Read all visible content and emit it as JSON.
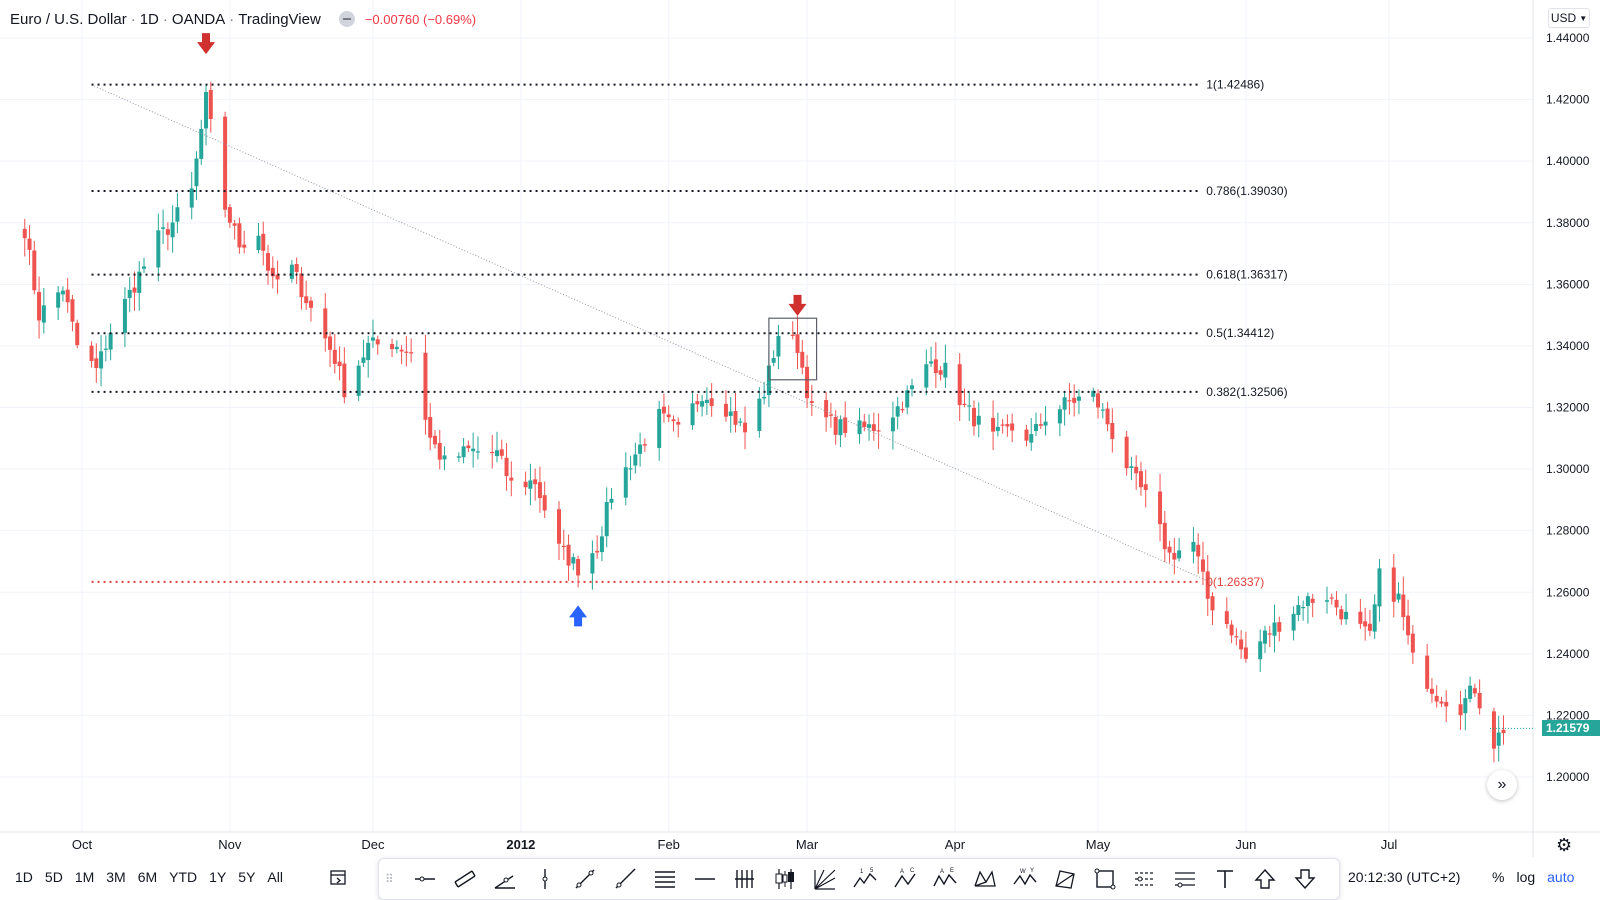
{
  "header": {
    "symbol": "Euro / U.S. Dollar",
    "interval": "1D",
    "source": "OANDA",
    "platform": "TradingView",
    "change": "−0.00760 (−0.69%)"
  },
  "currency_selector": "USD",
  "price_label": "1.21579",
  "timezone_clock": "20:12:30 (UTC+2)",
  "ranges": [
    "1D",
    "5D",
    "1M",
    "3M",
    "6M",
    "YTD",
    "1Y",
    "5Y",
    "All"
  ],
  "scale_options": {
    "percent": "%",
    "log": "log",
    "auto": "auto"
  },
  "drawing_tools": [
    {
      "icon": "horizontal-ray-icon"
    },
    {
      "icon": "parallel-channel-icon"
    },
    {
      "icon": "trend-angle-icon"
    },
    {
      "icon": "vertical-line-icon"
    },
    {
      "icon": "trend-line-icon"
    },
    {
      "icon": "ray-icon"
    },
    {
      "icon": "fib-retracement-icon"
    },
    {
      "icon": "horizontal-line-icon"
    },
    {
      "icon": "pitchfork-icon"
    },
    {
      "icon": "candles-icon"
    },
    {
      "icon": "gann-fan-icon"
    },
    {
      "icon": "elliott-wave-icon"
    },
    {
      "icon": "abc-pattern-icon"
    },
    {
      "icon": "abcde-pattern-icon"
    },
    {
      "icon": "xabcd-pattern-icon"
    },
    {
      "icon": "wxy-pattern-icon"
    },
    {
      "icon": "polyline-icon"
    },
    {
      "icon": "rectangle-icon"
    },
    {
      "icon": "long-position-icon"
    },
    {
      "icon": "short-position-icon"
    },
    {
      "icon": "text-icon"
    },
    {
      "icon": "arrow-up-icon"
    },
    {
      "icon": "arrow-down-icon"
    }
  ],
  "drawing_tool_labels": {
    "elliott": "1 5",
    "abc": "A C",
    "abcde": "A E",
    "wxy": "W Y"
  },
  "colors": {
    "up": "#26a69a",
    "down": "#ef5350",
    "fib_zero": "#e0403c",
    "marker_down": "#d0302e",
    "marker_up": "#2962ff"
  },
  "chart_data": {
    "type": "candlestick",
    "y_axis": {
      "min": 1.19,
      "max": 1.44,
      "ticks": [
        1.44,
        1.42,
        1.4,
        1.38,
        1.36,
        1.34,
        1.32,
        1.3,
        1.28,
        1.26,
        1.24,
        1.22,
        1.2
      ],
      "tick_labels": [
        "1.44000",
        "1.42000",
        "1.40000",
        "1.38000",
        "1.36000",
        "1.34000",
        "1.32000",
        "1.30000",
        "1.28000",
        "1.26000",
        "1.24000",
        "1.22000",
        "1.20000"
      ]
    },
    "x_axis": {
      "start_date": "2011-09-18",
      "end_date": "2012-07-29",
      "ticks": [
        {
          "date": "2011-10-01",
          "label": "Oct",
          "bold": false
        },
        {
          "date": "2011-11-01",
          "label": "Nov",
          "bold": false
        },
        {
          "date": "2011-12-01",
          "label": "Dec",
          "bold": false
        },
        {
          "date": "2012-01-01",
          "label": "2012",
          "bold": true
        },
        {
          "date": "2012-02-01",
          "label": "Feb",
          "bold": false
        },
        {
          "date": "2012-03-01",
          "label": "Mar",
          "bold": false
        },
        {
          "date": "2012-04-01",
          "label": "Apr",
          "bold": false
        },
        {
          "date": "2012-05-01",
          "label": "May",
          "bold": false
        },
        {
          "date": "2012-06-01",
          "label": "Jun",
          "bold": false
        },
        {
          "date": "2012-07-01",
          "label": "Jul",
          "bold": false
        }
      ]
    },
    "grid": true,
    "fibonacci": {
      "start_date": "2011-10-03",
      "end_date": "2012-05-22",
      "high_date": "2011-10-27",
      "low_date": "2012-01-13",
      "levels": [
        {
          "ratio": 1,
          "price": 1.42486,
          "label": "1(1.42486)"
        },
        {
          "ratio": 0.786,
          "price": 1.3903,
          "label": "0.786(1.39030)"
        },
        {
          "ratio": 0.618,
          "price": 1.36317,
          "label": "0.618(1.36317)"
        },
        {
          "ratio": 0.5,
          "price": 1.34412,
          "label": "0.5(1.34412)"
        },
        {
          "ratio": 0.382,
          "price": 1.32506,
          "label": "0.382(1.32506)"
        },
        {
          "ratio": 0,
          "price": 1.26337,
          "label": "0(1.26337)"
        }
      ]
    },
    "trend_line": {
      "from": {
        "date": "2011-10-03",
        "price": 1.4248
      },
      "to": {
        "date": "2012-05-25",
        "price": 1.263
      }
    },
    "highlight_box": {
      "from_date": "2012-02-22",
      "to_date": "2012-03-03",
      "high": 1.349,
      "low": 1.329
    },
    "markers": [
      {
        "date": "2011-10-27",
        "price": 1.438,
        "direction": "down"
      },
      {
        "date": "2012-02-28",
        "price": 1.353,
        "direction": "down"
      },
      {
        "date": "2012-01-13",
        "price": 1.2525,
        "direction": "up"
      }
    ],
    "anchors": [
      [
        "2011-09-19",
        1.378
      ],
      [
        "2011-09-22",
        1.35
      ],
      [
        "2011-09-27",
        1.359
      ],
      [
        "2011-09-30",
        1.34
      ],
      [
        "2011-10-04",
        1.332
      ],
      [
        "2011-10-07",
        1.345
      ],
      [
        "2011-10-12",
        1.36
      ],
      [
        "2011-10-17",
        1.375
      ],
      [
        "2011-10-20",
        1.38
      ],
      [
        "2011-10-24",
        1.39
      ],
      [
        "2011-10-27",
        1.42
      ],
      [
        "2011-10-31",
        1.385
      ],
      [
        "2011-11-03",
        1.373
      ],
      [
        "2011-11-07",
        1.377
      ],
      [
        "2011-11-10",
        1.36
      ],
      [
        "2011-11-14",
        1.365
      ],
      [
        "2011-11-18",
        1.352
      ],
      [
        "2011-11-23",
        1.336
      ],
      [
        "2011-11-25",
        1.326
      ],
      [
        "2011-11-30",
        1.34
      ],
      [
        "2011-12-05",
        1.341
      ],
      [
        "2011-12-09",
        1.338
      ],
      [
        "2011-12-13",
        1.31
      ],
      [
        "2011-12-16",
        1.302
      ],
      [
        "2011-12-21",
        1.306
      ],
      [
        "2011-12-27",
        1.305
      ],
      [
        "2011-12-30",
        1.295
      ],
      [
        "2012-01-04",
        1.296
      ],
      [
        "2012-01-09",
        1.274
      ],
      [
        "2012-01-13",
        1.268
      ],
      [
        "2012-01-17",
        1.275
      ],
      [
        "2012-01-20",
        1.292
      ],
      [
        "2012-01-25",
        1.305
      ],
      [
        "2012-01-30",
        1.317
      ],
      [
        "2012-02-03",
        1.312
      ],
      [
        "2012-02-08",
        1.325
      ],
      [
        "2012-02-13",
        1.32
      ],
      [
        "2012-02-17",
        1.312
      ],
      [
        "2012-02-21",
        1.325
      ],
      [
        "2012-02-24",
        1.344
      ],
      [
        "2012-02-28",
        1.34
      ],
      [
        "2012-03-02",
        1.319
      ],
      [
        "2012-03-07",
        1.314
      ],
      [
        "2012-03-12",
        1.313
      ],
      [
        "2012-03-16",
        1.314
      ],
      [
        "2012-03-20",
        1.32
      ],
      [
        "2012-03-23",
        1.326
      ],
      [
        "2012-03-27",
        1.335
      ],
      [
        "2012-03-30",
        1.332
      ],
      [
        "2012-04-03",
        1.32
      ],
      [
        "2012-04-09",
        1.31
      ],
      [
        "2012-04-13",
        1.313
      ],
      [
        "2012-04-17",
        1.31
      ],
      [
        "2012-04-20",
        1.317
      ],
      [
        "2012-04-25",
        1.322
      ],
      [
        "2012-04-30",
        1.324
      ],
      [
        "2012-05-03",
        1.315
      ],
      [
        "2012-05-08",
        1.298
      ],
      [
        "2012-05-11",
        1.291
      ],
      [
        "2012-05-16",
        1.272
      ],
      [
        "2012-05-21",
        1.276
      ],
      [
        "2012-05-24",
        1.258
      ],
      [
        "2012-05-29",
        1.248
      ],
      [
        "2012-06-01",
        1.238
      ],
      [
        "2012-06-05",
        1.246
      ],
      [
        "2012-06-08",
        1.25
      ],
      [
        "2012-06-13",
        1.257
      ],
      [
        "2012-06-18",
        1.259
      ],
      [
        "2012-06-22",
        1.252
      ],
      [
        "2012-06-27",
        1.245
      ],
      [
        "2012-06-29",
        1.265
      ],
      [
        "2012-07-03",
        1.258
      ],
      [
        "2012-07-06",
        1.238
      ],
      [
        "2012-07-11",
        1.227
      ],
      [
        "2012-07-16",
        1.223
      ],
      [
        "2012-07-19",
        1.229
      ],
      [
        "2012-07-23",
        1.211
      ],
      [
        "2012-07-25",
        1.2158
      ]
    ]
  }
}
